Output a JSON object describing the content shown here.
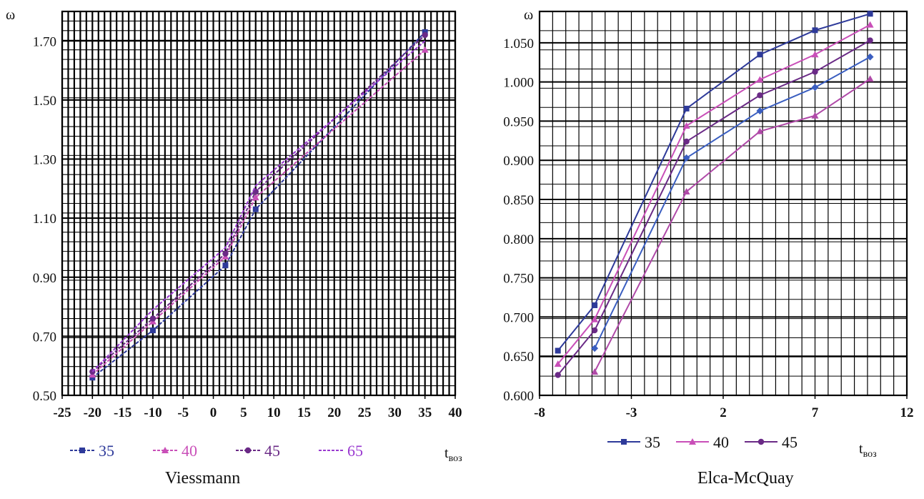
{
  "chart_data": [
    {
      "type": "line",
      "title": "",
      "caption": "Viessmann",
      "ylabel": "ω",
      "xlabel_main": "t",
      "xlabel_sub": "воз",
      "xlim": [
        -25,
        40
      ],
      "ylim": [
        0.5,
        1.8
      ],
      "x_ticks": [
        -25,
        -20,
        -15,
        -10,
        -5,
        0,
        5,
        10,
        15,
        20,
        25,
        30,
        35,
        40
      ],
      "x_tick_labels": [
        "-25",
        "-20",
        "-15",
        "-10",
        "-5",
        "0",
        "5",
        "10",
        "15",
        "20",
        "25",
        "30",
        "35",
        "40"
      ],
      "y_ticks": [
        0.5,
        0.7,
        0.9,
        1.1,
        1.3,
        1.5,
        1.7
      ],
      "y_tick_labels": [
        "0.50",
        "0.70",
        "0.90",
        "1.10",
        "1.30",
        "1.50",
        "1.70"
      ],
      "grid": true,
      "legend_position": "bottom",
      "series": [
        {
          "name": "35",
          "color": "#2e3a9a",
          "marker": "square",
          "dashed": true,
          "x": [
            -20,
            -10,
            2,
            7,
            35
          ],
          "y": [
            0.56,
            0.72,
            0.94,
            1.13,
            1.73
          ]
        },
        {
          "name": "40",
          "color": "#c94fb8",
          "marker": "triangle",
          "dashed": true,
          "x": [
            -20,
            -10,
            2,
            7,
            35
          ],
          "y": [
            0.57,
            0.75,
            0.97,
            1.17,
            1.67
          ]
        },
        {
          "name": "45",
          "color": "#6a2a86",
          "marker": "circle",
          "dashed": true,
          "x": [
            -20,
            -10,
            2,
            7,
            35
          ],
          "y": [
            0.58,
            0.76,
            0.98,
            1.19,
            1.72
          ]
        },
        {
          "name": "65",
          "color": "#9a3ad0",
          "marker": "none",
          "dashed": true,
          "x": [
            -20,
            -10,
            2,
            7,
            35
          ],
          "y": [
            0.58,
            0.79,
            1.0,
            1.21,
            1.7
          ]
        }
      ]
    },
    {
      "type": "line",
      "title": "",
      "caption": "Elca-McQuay",
      "ylabel": "ω",
      "xlabel_main": "t",
      "xlabel_sub": "воз",
      "xlim": [
        -8,
        12
      ],
      "ylim": [
        0.6,
        1.09
      ],
      "x_ticks": [
        -8,
        -3,
        2,
        7,
        12
      ],
      "x_tick_labels": [
        "-8",
        "-3",
        "2",
        "7",
        "12"
      ],
      "y_ticks": [
        0.6,
        0.65,
        0.7,
        0.75,
        0.8,
        0.85,
        0.9,
        0.95,
        1.0,
        1.05
      ],
      "y_tick_labels": [
        "0.600",
        "0.650",
        "0.700",
        "0.750",
        "0.800",
        "0.850",
        "0.900",
        "0.950",
        "1.000",
        "1.050"
      ],
      "grid": true,
      "legend_position": "bottom",
      "series": [
        {
          "name": "35",
          "color": "#2e3a9a",
          "marker": "square",
          "dashed": false,
          "x": [
            -7,
            -5,
            0,
            4,
            7,
            10
          ],
          "y": [
            0.657,
            0.715,
            0.966,
            1.035,
            1.066,
            1.087
          ]
        },
        {
          "name": "",
          "color": "#3a5ec0",
          "marker": "diamond",
          "dashed": false,
          "x": [
            -5,
            0,
            4,
            7,
            10
          ],
          "y": [
            0.66,
            0.903,
            0.963,
            0.993,
            1.032
          ]
        },
        {
          "name": "40",
          "color": "#c94fb8",
          "marker": "triangle",
          "dashed": false,
          "x": [
            -7,
            -5,
            0,
            4,
            7,
            10
          ],
          "y": [
            0.64,
            0.697,
            0.944,
            1.003,
            1.035,
            1.073
          ]
        },
        {
          "name": "",
          "color": "#b04aa8",
          "marker": "triangle",
          "dashed": false,
          "x": [
            -5,
            0,
            4,
            7,
            10
          ],
          "y": [
            0.63,
            0.86,
            0.937,
            0.957,
            1.004
          ]
        },
        {
          "name": "45",
          "color": "#6a2a86",
          "marker": "circle",
          "dashed": false,
          "x": [
            -7,
            -5,
            0,
            4,
            7,
            10
          ],
          "y": [
            0.626,
            0.683,
            0.924,
            0.983,
            1.013,
            1.053
          ]
        }
      ]
    }
  ]
}
